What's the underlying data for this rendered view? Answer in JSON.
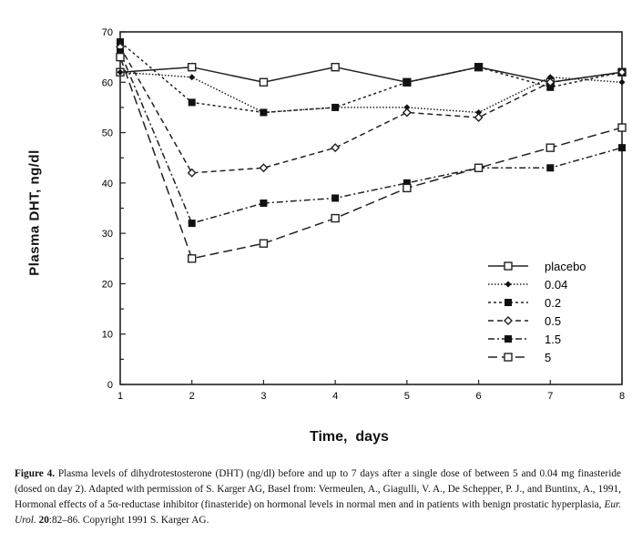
{
  "chart_data": {
    "type": "line",
    "title": "",
    "xlabel": "Time,  days",
    "ylabel": "Plasma DHT, ng/dl",
    "x": [
      1,
      2,
      3,
      4,
      5,
      6,
      7,
      8
    ],
    "xlim": [
      1,
      8
    ],
    "ylim": [
      0,
      70
    ],
    "xticks": [
      "1",
      "2",
      "3",
      "4",
      "5",
      "6",
      "7",
      "8"
    ],
    "yticks": [
      "0",
      "10",
      "20",
      "30",
      "40",
      "50",
      "60",
      "70"
    ],
    "grid": false,
    "legend_position": "bottom-right",
    "series": [
      {
        "name": "placebo",
        "values": [
          62,
          63,
          60,
          63,
          60,
          63,
          60,
          62
        ],
        "dash": "",
        "marker": "open-square"
      },
      {
        "name": "0.04",
        "values": [
          62,
          61,
          54,
          55,
          55,
          54,
          61,
          60
        ],
        "dash": "1.5,2",
        "marker": "diamond"
      },
      {
        "name": "0.2",
        "values": [
          68,
          56,
          54,
          55,
          60,
          63,
          59,
          62
        ],
        "dash": "3,3",
        "marker": "filled-square"
      },
      {
        "name": "0.5",
        "values": [
          67,
          42,
          43,
          47,
          54,
          53,
          60,
          62
        ],
        "dash": "6,4",
        "marker": "open-diamond"
      },
      {
        "name": "1.5",
        "values": [
          66,
          32,
          36,
          37,
          40,
          43,
          43,
          47
        ],
        "dash": "7,3,2,3",
        "marker": "filled-square"
      },
      {
        "name": "5",
        "values": [
          65,
          25,
          28,
          33,
          39,
          43,
          47,
          51
        ],
        "dash": "10,5",
        "marker": "open-square"
      }
    ]
  },
  "caption": {
    "label": "Figure 4.",
    "text1": "  Plasma levels of dihydrotestosterone (DHT) (ng/dl) before and up to 7 days after a single dose of between 5 and 0.04 mg finasteride (dosed on day 2). Adapted with permission of S. Karger AG, Basel from: Vermeulen, A., Giagulli, V. A., De Schepper, P. J., and Buntinx, A., 1991, Hormonal effects of a 5α-reductase inhibitor (finasteride) on hormonal levels in normal men and in patients with benign prostatic hyperplasia, ",
    "journal": "Eur. Urol.",
    "volume": " 20",
    "text2": ":82–86. Copyright 1991 S. Karger AG."
  }
}
